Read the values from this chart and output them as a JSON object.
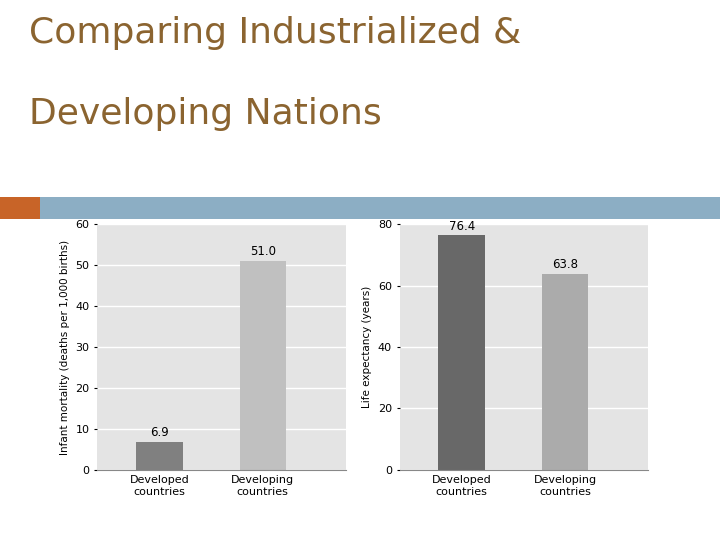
{
  "title_line1": "Comparing Industrialized &",
  "title_line2": "Developing Nations",
  "title_color": "#8B6430",
  "title_fontsize": 26,
  "background_color": "#FFFFFF",
  "header_bar_color": "#8CAEC4",
  "header_orange_color": "#C86428",
  "panel_bg": "#E4E4E4",
  "chart1": {
    "categories": [
      "Developed\ncountries",
      "Developing\ncountries"
    ],
    "values": [
      6.9,
      51.0
    ],
    "bar_colors": [
      "#808080",
      "#C0C0C0"
    ],
    "ylabel": "Infant mortality (deaths per 1,000 births)",
    "ylim": [
      0,
      60
    ],
    "yticks": [
      0,
      10,
      20,
      30,
      40,
      50,
      60
    ],
    "annotations": [
      "6.9",
      "51.0"
    ],
    "ann_offsets": [
      0.5,
      0.8
    ]
  },
  "chart2": {
    "categories": [
      "Developed\ncountries",
      "Developing\ncountries"
    ],
    "values": [
      76.4,
      63.8
    ],
    "bar_colors": [
      "#686868",
      "#ABABAB"
    ],
    "ylabel": "Life expectancy (years)",
    "ylim": [
      0,
      80
    ],
    "yticks": [
      0,
      20,
      40,
      60,
      80
    ],
    "annotations": [
      "76.4",
      "63.8"
    ],
    "ann_offsets": [
      0.8,
      0.8
    ]
  }
}
